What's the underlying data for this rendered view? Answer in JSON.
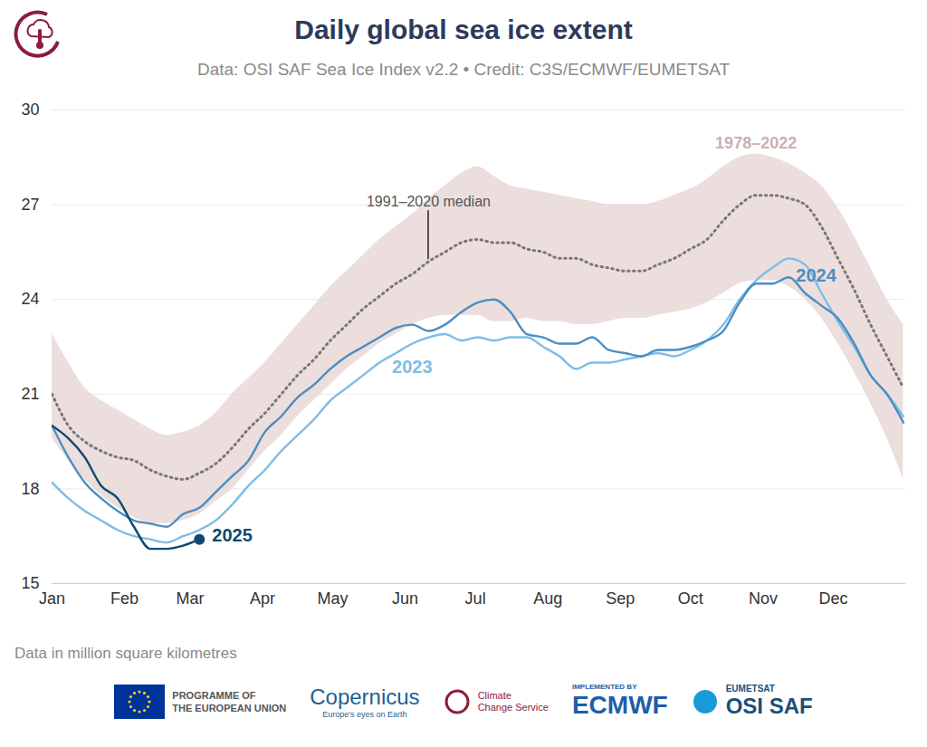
{
  "chart_data": {
    "type": "line",
    "title": "Daily global sea ice extent",
    "subtitle": "Data: OSI SAF Sea Ice Index v2.2 • Credit: C3S/ECMWF/EUMETSAT",
    "caption": "Data in million square kilometres",
    "x": [
      1,
      8,
      15,
      22,
      29,
      36,
      43,
      50,
      57,
      64,
      71,
      78,
      85,
      92,
      99,
      106,
      113,
      120,
      127,
      134,
      141,
      148,
      155,
      162,
      169,
      176,
      183,
      190,
      197,
      204,
      211,
      218,
      225,
      232,
      239,
      246,
      253,
      260,
      267,
      274,
      281,
      288,
      295,
      302,
      309,
      316,
      323,
      330,
      337,
      344,
      351,
      358,
      365
    ],
    "xlim": [
      1,
      366
    ],
    "xticks": [
      {
        "value": 1,
        "label": "Jan"
      },
      {
        "value": 32,
        "label": "Feb"
      },
      {
        "value": 60,
        "label": "Mar"
      },
      {
        "value": 91,
        "label": "Apr"
      },
      {
        "value": 121,
        "label": "May"
      },
      {
        "value": 152,
        "label": "Jun"
      },
      {
        "value": 182,
        "label": "Jul"
      },
      {
        "value": 213,
        "label": "Aug"
      },
      {
        "value": 244,
        "label": "Sep"
      },
      {
        "value": 274,
        "label": "Oct"
      },
      {
        "value": 305,
        "label": "Nov"
      },
      {
        "value": 335,
        "label": "Dec"
      }
    ],
    "ylim": [
      15,
      30
    ],
    "yticks": [
      15,
      18,
      21,
      24,
      27,
      30
    ],
    "grid": true,
    "series": [
      {
        "name": "1978–2022",
        "type": "band",
        "color": "#e6d3d0",
        "low": [
          19.6,
          18.9,
          18.3,
          17.8,
          17.4,
          17.1,
          16.9,
          16.9,
          17.0,
          17.2,
          17.6,
          18.0,
          18.6,
          19.2,
          19.7,
          20.3,
          20.8,
          21.3,
          21.8,
          22.2,
          22.6,
          22.9,
          23.2,
          23.4,
          23.5,
          23.5,
          23.5,
          23.3,
          23.3,
          23.4,
          23.3,
          23.3,
          23.2,
          23.2,
          23.3,
          23.4,
          23.4,
          23.5,
          23.6,
          23.7,
          23.9,
          24.2,
          24.5,
          24.6,
          24.6,
          24.4,
          24.0,
          23.4,
          22.6,
          21.7,
          20.7,
          19.6,
          18.3
        ],
        "high": [
          22.9,
          22.0,
          21.2,
          20.8,
          20.5,
          20.2,
          19.9,
          19.7,
          19.8,
          20.0,
          20.4,
          21.0,
          21.5,
          22.0,
          22.6,
          23.2,
          23.8,
          24.4,
          24.9,
          25.4,
          25.9,
          26.3,
          26.7,
          27.2,
          27.6,
          28.0,
          28.2,
          27.9,
          27.6,
          27.5,
          27.4,
          27.3,
          27.2,
          27.1,
          27.0,
          27.0,
          27.0,
          27.1,
          27.3,
          27.5,
          27.8,
          28.2,
          28.5,
          28.6,
          28.5,
          28.3,
          28.0,
          27.6,
          26.9,
          26.0,
          25.0,
          24.0,
          23.2
        ]
      },
      {
        "name": "1991–2020 median",
        "type": "line",
        "line_style": "dotted",
        "color": "#777777",
        "values": [
          21.0,
          20.0,
          19.5,
          19.2,
          19.0,
          18.9,
          18.6,
          18.4,
          18.3,
          18.5,
          18.8,
          19.3,
          19.9,
          20.4,
          21.0,
          21.6,
          22.1,
          22.7,
          23.2,
          23.7,
          24.1,
          24.5,
          24.8,
          25.2,
          25.5,
          25.8,
          25.9,
          25.8,
          25.8,
          25.6,
          25.5,
          25.3,
          25.3,
          25.1,
          25.0,
          24.9,
          24.9,
          25.1,
          25.3,
          25.6,
          25.9,
          26.5,
          27.0,
          27.3,
          27.3,
          27.2,
          27.0,
          26.3,
          25.3,
          24.3,
          23.2,
          22.2,
          21.2
        ]
      },
      {
        "name": "2023",
        "type": "line",
        "line_style": "solid",
        "color": "#7dbde8",
        "values": [
          18.2,
          17.7,
          17.3,
          17.0,
          16.7,
          16.5,
          16.4,
          16.3,
          16.5,
          16.7,
          17.0,
          17.5,
          18.1,
          18.6,
          19.2,
          19.7,
          20.2,
          20.8,
          21.2,
          21.6,
          22.0,
          22.3,
          22.6,
          22.8,
          22.9,
          22.7,
          22.8,
          22.7,
          22.8,
          22.8,
          22.5,
          22.2,
          21.8,
          22.0,
          22.0,
          22.1,
          22.2,
          22.3,
          22.2,
          22.4,
          22.7,
          23.2,
          24.0,
          24.6,
          25.0,
          25.3,
          25.1,
          24.2,
          23.3,
          22.5,
          21.6,
          21.0,
          20.3
        ]
      },
      {
        "name": "2024",
        "type": "line",
        "line_style": "solid",
        "color": "#4a8ec2",
        "values": [
          20.0,
          19.0,
          18.2,
          17.7,
          17.3,
          17.0,
          16.9,
          16.8,
          17.2,
          17.4,
          17.9,
          18.4,
          18.9,
          19.8,
          20.3,
          20.9,
          21.3,
          21.8,
          22.2,
          22.5,
          22.8,
          23.1,
          23.2,
          23.0,
          23.2,
          23.6,
          23.9,
          24.0,
          23.6,
          22.9,
          22.8,
          22.6,
          22.6,
          22.8,
          22.4,
          22.3,
          22.2,
          22.4,
          22.4,
          22.5,
          22.7,
          23.0,
          23.9,
          24.5,
          24.5,
          24.7,
          24.2,
          23.8,
          23.4,
          22.6,
          21.6,
          21.0,
          20.1
        ]
      },
      {
        "name": "2025",
        "type": "line",
        "line_style": "solid",
        "marker": "dot",
        "color": "#0e4a70",
        "values": [
          20.0,
          19.6,
          19.0,
          18.1,
          17.7,
          16.8,
          16.1,
          16.1,
          16.2,
          16.4,
          null,
          null,
          null,
          null,
          null,
          null,
          null,
          null,
          null,
          null,
          null,
          null,
          null,
          null,
          null,
          null,
          null,
          null,
          null,
          null,
          null,
          null,
          null,
          null,
          null,
          null,
          null,
          null,
          null,
          null,
          null,
          null,
          null,
          null,
          null,
          null,
          null,
          null,
          null,
          null,
          null,
          null,
          null
        ]
      }
    ]
  },
  "footer": {
    "eu": [
      "PROGRAMME OF",
      "THE EUROPEAN UNION"
    ],
    "copernicus": [
      "Copernicus",
      "Europe's eyes on Earth"
    ],
    "c3s": [
      "Climate",
      "Change Service"
    ],
    "ecmwf": [
      "IMPLEMENTED BY",
      "ECMWF"
    ],
    "eumetsat": [
      "EUMETSAT",
      "OSI SAF"
    ]
  }
}
